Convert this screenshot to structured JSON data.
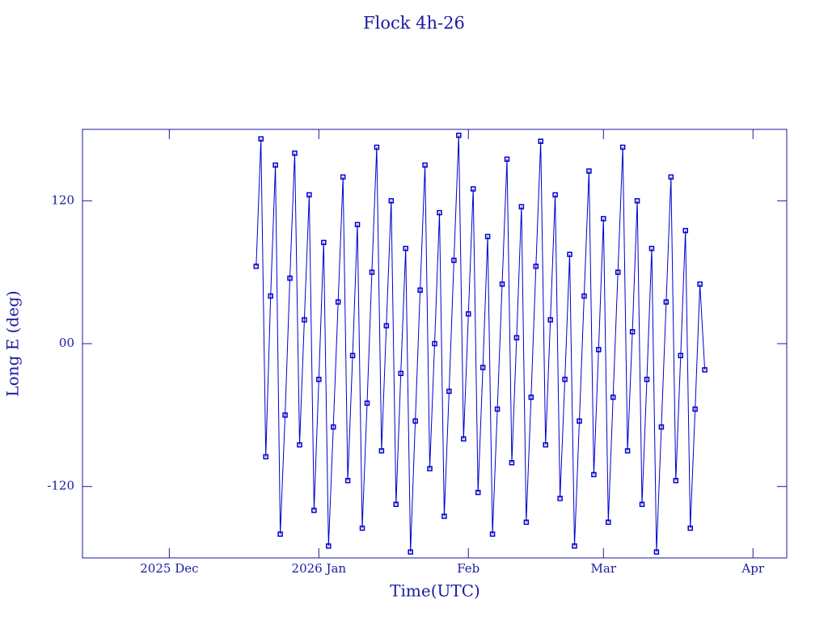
{
  "chart_data": {
    "type": "line",
    "title": "Flock 4h-26",
    "x_label": "Time(UTC)",
    "y_label": "Long E (deg)",
    "xlim": [
      "2025-11-13",
      "2026-04-08"
    ],
    "xticks": [
      {
        "value": "2025-12-01",
        "label": "2025 Dec"
      },
      {
        "value": "2026-01-01",
        "label": "2026 Jan"
      },
      {
        "value": "2026-02-01",
        "label": "Feb"
      },
      {
        "value": "2026-03-01",
        "label": "Mar"
      },
      {
        "value": "2026-04-01",
        "label": "Apr"
      }
    ],
    "ylim": [
      -180,
      180
    ],
    "yticks": [
      -120,
      {
        "value": 0,
        "label": "00"
      },
      120
    ],
    "x": [
      "2025-12-19",
      "2025-12-20",
      "2025-12-21",
      "2025-12-22",
      "2025-12-23",
      "2025-12-24",
      "2025-12-25",
      "2025-12-26",
      "2025-12-27",
      "2025-12-28",
      "2025-12-29",
      "2025-12-30",
      "2025-12-31",
      "2026-01-01",
      "2026-01-02",
      "2026-01-03",
      "2026-01-04",
      "2026-01-05",
      "2026-01-06",
      "2026-01-07",
      "2026-01-08",
      "2026-01-09",
      "2026-01-10",
      "2026-01-11",
      "2026-01-12",
      "2026-01-13",
      "2026-01-14",
      "2026-01-15",
      "2026-01-16",
      "2026-01-17",
      "2026-01-18",
      "2026-01-19",
      "2026-01-20",
      "2026-01-21",
      "2026-01-22",
      "2026-01-23",
      "2026-01-24",
      "2026-01-25",
      "2026-01-26",
      "2026-01-27",
      "2026-01-28",
      "2026-01-29",
      "2026-01-30",
      "2026-01-31",
      "2026-02-01",
      "2026-02-02",
      "2026-02-03",
      "2026-02-04",
      "2026-02-05",
      "2026-02-06",
      "2026-02-07",
      "2026-02-08",
      "2026-02-09",
      "2026-02-10",
      "2026-02-11",
      "2026-02-12",
      "2026-02-13",
      "2026-02-14",
      "2026-02-15",
      "2026-02-16",
      "2026-02-17",
      "2026-02-18",
      "2026-02-19",
      "2026-02-20",
      "2026-02-21",
      "2026-02-22",
      "2026-02-23",
      "2026-02-24",
      "2026-02-25",
      "2026-02-26",
      "2026-02-27",
      "2026-02-28",
      "2026-03-01",
      "2026-03-02",
      "2026-03-03",
      "2026-03-04",
      "2026-03-05",
      "2026-03-06",
      "2026-03-07",
      "2026-03-08",
      "2026-03-09",
      "2026-03-10",
      "2026-03-11",
      "2026-03-12",
      "2026-03-13",
      "2026-03-14",
      "2026-03-15",
      "2026-03-16",
      "2026-03-17",
      "2026-03-18",
      "2026-03-19",
      "2026-03-20",
      "2026-03-21",
      "2026-03-22"
    ],
    "series": [
      {
        "color": "#0000cc",
        "values": [
          65,
          172,
          -95,
          40,
          150,
          -160,
          -60,
          55,
          160,
          -85,
          20,
          125,
          -140,
          -30,
          85,
          -170,
          -70,
          35,
          140,
          -115,
          -10,
          100,
          -155,
          -50,
          60,
          165,
          -90,
          15,
          120,
          -135,
          -25,
          80,
          -175,
          -65,
          45,
          150,
          -105,
          0,
          110,
          -145,
          -40,
          70,
          175,
          -80,
          25,
          130,
          -125,
          -20,
          90,
          -160,
          -55,
          50,
          155,
          -100,
          5,
          115,
          -150,
          -45,
          65,
          170,
          -85,
          20,
          125,
          -130,
          -30,
          75,
          -170,
          -65,
          40,
          145,
          -110,
          -5,
          105,
          -150,
          -45,
          60,
          165,
          -90,
          10,
          120,
          -135,
          -30,
          80,
          -175,
          -70,
          35,
          140,
          -115,
          -10,
          95,
          -155,
          -55,
          50,
          -22
        ]
      }
    ],
    "axis_color": "#1a1aa0"
  }
}
